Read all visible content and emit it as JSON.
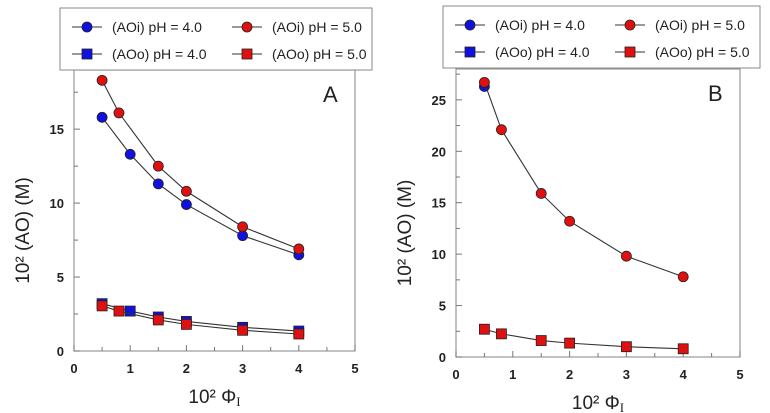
{
  "chart_data": [
    {
      "type": "line",
      "panel_label": "A",
      "xlabel": "10² Φ",
      "xlabel_sub": "I",
      "ylabel": "10² (AO) (M)",
      "xlim": [
        0,
        5
      ],
      "ylim": [
        0,
        19
      ],
      "xticks": [
        0,
        1,
        2,
        3,
        4,
        5
      ],
      "yticks": [
        0,
        5,
        10,
        15
      ],
      "grid": false,
      "legend": "top",
      "series": [
        {
          "name": "(AOi)  pH = 4.0",
          "marker": "circle",
          "color": "#1010e0",
          "x": [
            0.5,
            1,
            1.5,
            2,
            3,
            4
          ],
          "y": [
            15.8,
            13.3,
            11.3,
            9.9,
            7.8,
            6.5
          ]
        },
        {
          "name": "(AOi)  pH = 5.0",
          "marker": "circle",
          "color": "#e01010",
          "x": [
            0.5,
            0.8,
            1.5,
            2,
            3,
            4
          ],
          "y": [
            18.3,
            16.1,
            12.5,
            10.8,
            8.4,
            6.9
          ]
        },
        {
          "name": "(AOo) pH = 4.0",
          "marker": "square",
          "color": "#1010e0",
          "x": [
            0.5,
            1,
            1.5,
            2,
            3,
            4
          ],
          "y": [
            3.2,
            2.7,
            2.3,
            2.0,
            1.6,
            1.35
          ]
        },
        {
          "name": "(AOo) pH = 5.0",
          "marker": "square",
          "color": "#e01010",
          "x": [
            0.5,
            0.8,
            1.5,
            2,
            3,
            4
          ],
          "y": [
            3.05,
            2.7,
            2.1,
            1.8,
            1.4,
            1.15
          ]
        }
      ]
    },
    {
      "type": "line",
      "panel_label": "B",
      "xlabel": "10² Φ",
      "xlabel_sub": "I",
      "ylabel": "10² (AO) (M)",
      "xlim": [
        0,
        5
      ],
      "ylim": [
        0,
        28
      ],
      "xticks": [
        0,
        1,
        2,
        3,
        4,
        5
      ],
      "yticks": [
        0,
        5,
        10,
        15,
        20,
        25
      ],
      "grid": false,
      "legend": "top",
      "series": [
        {
          "name": "(AOi)  pH = 4.0",
          "marker": "circle",
          "color": "#1010e0",
          "x": [
            0.5
          ],
          "y": [
            26.3
          ]
        },
        {
          "name": "(AOi)  pH = 5.0",
          "marker": "circle",
          "color": "#e01010",
          "x": [
            0.5,
            0.8,
            1.5,
            2,
            3,
            4
          ],
          "y": [
            26.7,
            22.1,
            15.9,
            13.2,
            9.8,
            7.8
          ]
        },
        {
          "name": "(AOo) pH = 4.0",
          "marker": "square",
          "color": "#1010e0",
          "x": [],
          "y": []
        },
        {
          "name": "(AOo) pH = 5.0",
          "marker": "square",
          "color": "#e01010",
          "x": [
            0.5,
            0.8,
            1.5,
            2,
            3,
            4
          ],
          "y": [
            2.7,
            2.25,
            1.6,
            1.35,
            1.0,
            0.8
          ]
        }
      ]
    }
  ]
}
